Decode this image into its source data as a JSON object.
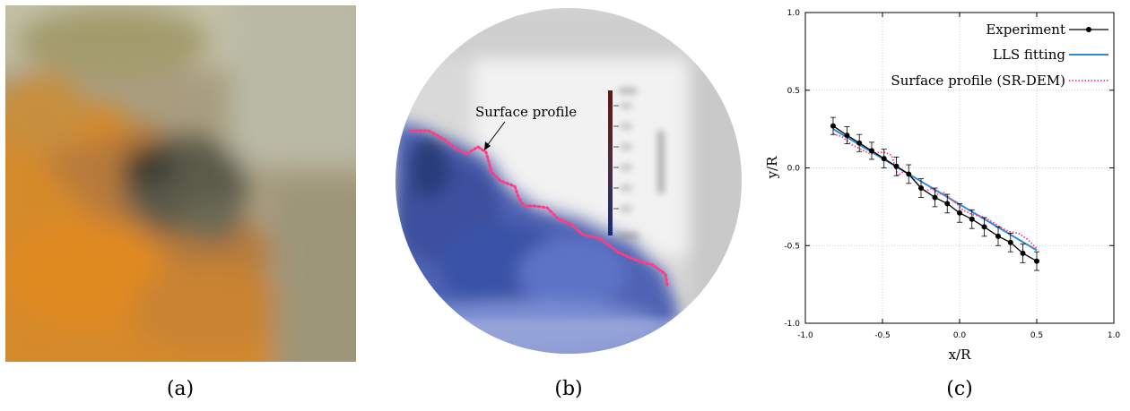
{
  "captions": {
    "a": "(a)",
    "b": "(b)",
    "c": "(c)"
  },
  "panel_b": {
    "annotation": "Surface profile",
    "accent_color": "#ff3c82"
  },
  "chart_data": {
    "type": "line",
    "xlabel": "x/R",
    "ylabel": "y/R",
    "xlim": [
      -1.0,
      1.0
    ],
    "ylim": [
      -1.0,
      1.0
    ],
    "xticks": [
      "-1.0",
      "-0.5",
      "0.0",
      "0.5",
      "1.0"
    ],
    "yticks": [
      "1.0",
      "0.5",
      "0.0",
      "-0.5",
      "-1.0"
    ],
    "grid": true,
    "legend_position": "top-right",
    "series": [
      {
        "name": "Experiment",
        "style": "line-markers-errorbars",
        "color": "#000000",
        "x": [
          -0.82,
          -0.73,
          -0.65,
          -0.57,
          -0.49,
          -0.41,
          -0.33,
          -0.25,
          -0.16,
          -0.08,
          0.0,
          0.08,
          0.16,
          0.25,
          0.33,
          0.41,
          0.5
        ],
        "y": [
          0.27,
          0.21,
          0.16,
          0.11,
          0.06,
          0.01,
          -0.04,
          -0.13,
          -0.19,
          -0.23,
          -0.29,
          -0.33,
          -0.38,
          -0.44,
          -0.48,
          -0.55,
          -0.6
        ],
        "error": [
          0.055,
          0.055,
          0.055,
          0.055,
          0.06,
          0.06,
          0.06,
          0.06,
          0.06,
          0.06,
          0.06,
          0.06,
          0.06,
          0.06,
          0.06,
          0.06,
          0.06
        ]
      },
      {
        "name": "LLS fitting",
        "style": "line",
        "color": "#2a8bd8",
        "x": [
          -0.82,
          0.5
        ],
        "y": [
          0.25,
          -0.53
        ]
      },
      {
        "name": "Surface profile (SR-DEM)",
        "style": "dotted",
        "color": "#ff3c82",
        "x": [
          -0.82,
          -0.76,
          -0.7,
          -0.64,
          -0.58,
          -0.52,
          -0.48,
          -0.44,
          -0.4,
          -0.36,
          -0.3,
          -0.26,
          -0.22,
          -0.18,
          -0.14,
          -0.1,
          -0.06,
          -0.02,
          0.02,
          0.08,
          0.14,
          0.2,
          0.26,
          0.32,
          0.38,
          0.44,
          0.5
        ],
        "y": [
          0.22,
          0.2,
          0.15,
          0.12,
          0.09,
          0.1,
          0.1,
          0.08,
          -0.05,
          -0.02,
          -0.07,
          -0.12,
          -0.15,
          -0.13,
          -0.17,
          -0.16,
          -0.2,
          -0.23,
          -0.27,
          -0.3,
          -0.31,
          -0.34,
          -0.38,
          -0.41,
          -0.42,
          -0.46,
          -0.52
        ]
      }
    ]
  }
}
